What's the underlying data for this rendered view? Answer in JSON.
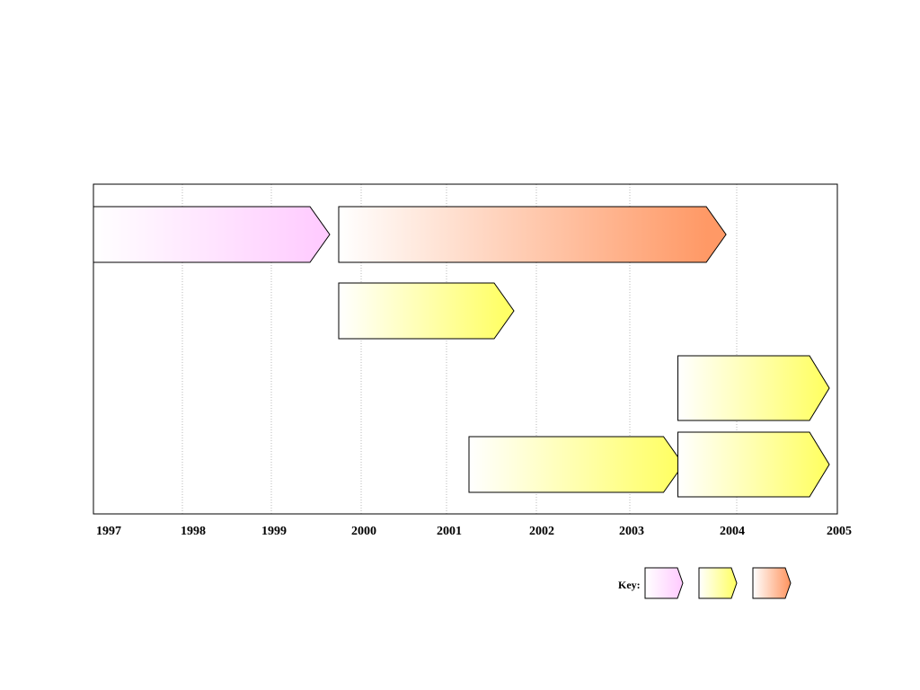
{
  "axis": {
    "start_year": 1997,
    "end_year": 2005,
    "ticks": [
      "1997",
      "1998",
      "1999",
      "2000",
      "2001",
      "2002",
      "2003",
      "2004",
      "2005"
    ]
  },
  "categories": {
    "pink": {
      "color": "#ffccff"
    },
    "yellow": {
      "color": "#ffff66"
    },
    "orange": {
      "color": "#ff9966"
    }
  },
  "bars": [
    {
      "category": "pink",
      "start": 1997.0,
      "end": 1999.65,
      "row": 0
    },
    {
      "category": "orange",
      "start": 1999.75,
      "end": 2003.9,
      "row": 0
    },
    {
      "category": "yellow",
      "start": 1999.75,
      "end": 2001.75,
      "row": 1
    },
    {
      "category": "yellow",
      "start": 2003.45,
      "end": 2004.92,
      "row": 2
    },
    {
      "category": "yellow",
      "start": 2001.25,
      "end": 2003.5,
      "row": 3
    },
    {
      "category": "yellow",
      "start": 2003.45,
      "end": 2004.92,
      "row": 4
    }
  ],
  "key": {
    "label": "Key:",
    "items": [
      "pink",
      "yellow",
      "orange"
    ]
  }
}
